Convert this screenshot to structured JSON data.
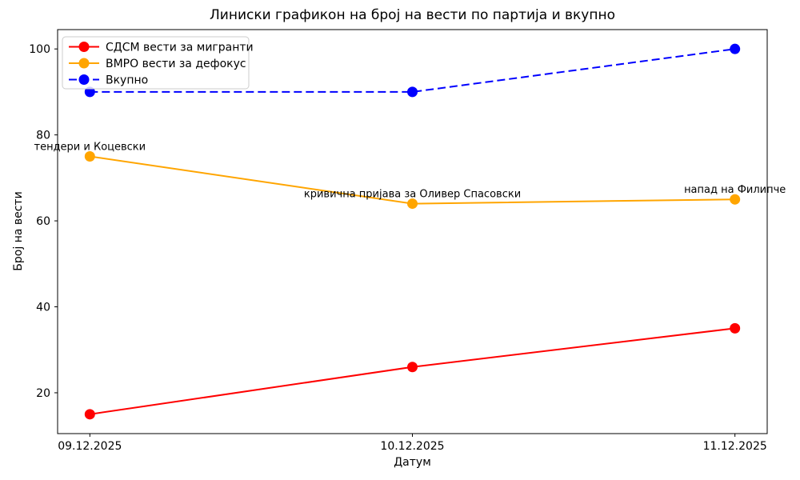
{
  "chart_data": {
    "type": "line",
    "title": "Линиски графикон на број на вести по партија и вкупно",
    "xlabel": "Датум",
    "ylabel": "Број на вести",
    "categories": [
      "09.12.2025",
      "10.12.2025",
      "11.12.2025"
    ],
    "series": [
      {
        "name": "СДСМ вести за мигранти",
        "color": "#ff0000",
        "style": "solid",
        "values": [
          15,
          26,
          35
        ]
      },
      {
        "name": "ВМРО вести за дефокус",
        "color": "#ffa500",
        "style": "solid",
        "values": [
          75,
          64,
          65
        ]
      },
      {
        "name": "Вкупно",
        "color": "#0000ff",
        "style": "dashed",
        "values": [
          90,
          90,
          100
        ]
      }
    ],
    "annotations": [
      {
        "text": "тендери и Коцевски",
        "series": 1,
        "point": 0
      },
      {
        "text": "кривична пријава за Оливер Спасовски",
        "series": 1,
        "point": 1
      },
      {
        "text": "напад на Филипче",
        "series": 1,
        "point": 2
      }
    ],
    "yticks": [
      20,
      40,
      60,
      80,
      100
    ],
    "ylim": [
      10.5,
      104.5
    ],
    "legend_position": "upper left",
    "grid": false,
    "colors": {
      "axis": "#000000",
      "legend_border": "#cccccc",
      "legend_background": "#ffffff"
    }
  }
}
